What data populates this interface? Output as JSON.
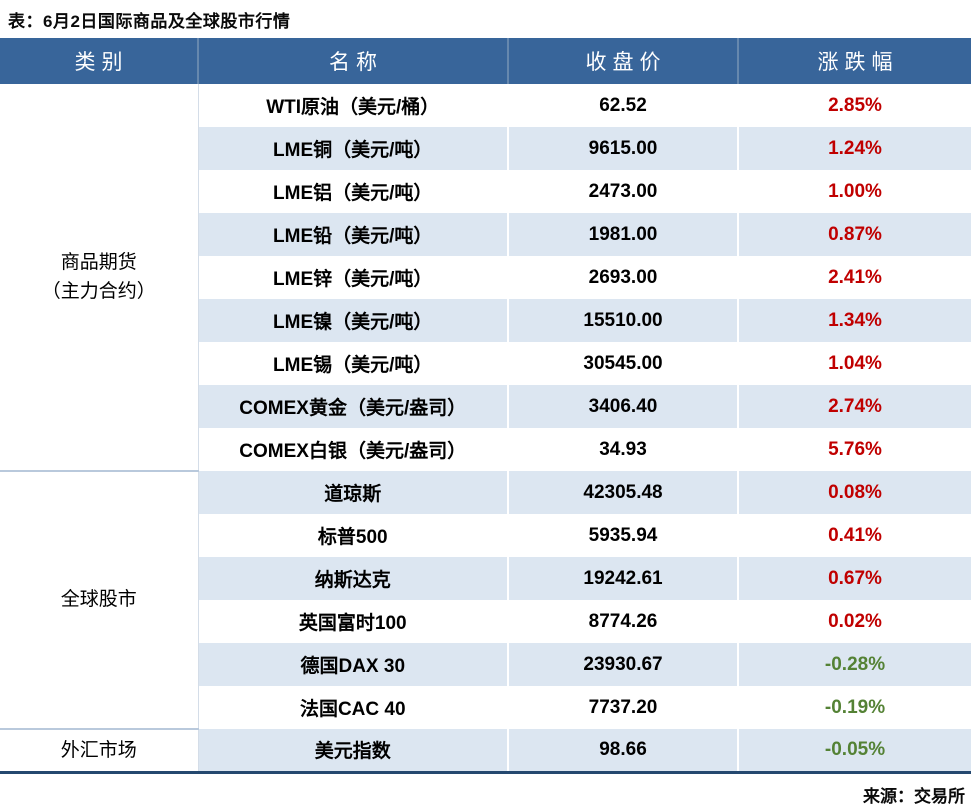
{
  "title": "表：6月2日国际商品及全球股市行情",
  "source": "来源：交易所",
  "colors": {
    "header_bg": "#38659A",
    "row_alt_bg": "#DCE6F1",
    "row_bg": "#FFFFFF",
    "up_text": "#C00000",
    "down_text": "#548235",
    "bottom_border": "#24486F"
  },
  "table": {
    "headers": [
      "类别",
      "名称",
      "收盘价",
      "涨跌幅"
    ],
    "groups": [
      {
        "category_lines": [
          "商品期货",
          "（主力合约）"
        ],
        "rows": [
          {
            "name": "WTI原油（美元/桶）",
            "close": "62.52",
            "change": "2.85%",
            "direction": "up"
          },
          {
            "name": "LME铜（美元/吨）",
            "close": "9615.00",
            "change": "1.24%",
            "direction": "up"
          },
          {
            "name": "LME铝（美元/吨）",
            "close": "2473.00",
            "change": "1.00%",
            "direction": "up"
          },
          {
            "name": "LME铅（美元/吨）",
            "close": "1981.00",
            "change": "0.87%",
            "direction": "up"
          },
          {
            "name": "LME锌（美元/吨）",
            "close": "2693.00",
            "change": "2.41%",
            "direction": "up"
          },
          {
            "name": "LME镍（美元/吨）",
            "close": "15510.00",
            "change": "1.34%",
            "direction": "up"
          },
          {
            "name": "LME锡（美元/吨）",
            "close": "30545.00",
            "change": "1.04%",
            "direction": "up"
          },
          {
            "name": "COMEX黄金（美元/盎司）",
            "close": "3406.40",
            "change": "2.74%",
            "direction": "up"
          },
          {
            "name": "COMEX白银（美元/盎司）",
            "close": "34.93",
            "change": "5.76%",
            "direction": "up"
          }
        ]
      },
      {
        "category_lines": [
          "全球股市"
        ],
        "rows": [
          {
            "name": "道琼斯",
            "close": "42305.48",
            "change": "0.08%",
            "direction": "up"
          },
          {
            "name": "标普500",
            "close": "5935.94",
            "change": "0.41%",
            "direction": "up"
          },
          {
            "name": "纳斯达克",
            "close": "19242.61",
            "change": "0.67%",
            "direction": "up"
          },
          {
            "name": "英国富时100",
            "close": "8774.26",
            "change": "0.02%",
            "direction": "up"
          },
          {
            "name": "德国DAX 30",
            "close": "23930.67",
            "change": "-0.28%",
            "direction": "down"
          },
          {
            "name": "法国CAC 40",
            "close": "7737.20",
            "change": "-0.19%",
            "direction": "down"
          }
        ]
      },
      {
        "category_lines": [
          "外汇市场"
        ],
        "rows": [
          {
            "name": "美元指数",
            "close": "98.66",
            "change": "-0.05%",
            "direction": "down"
          }
        ]
      }
    ]
  },
  "chart_data": {
    "type": "table",
    "title": "表：6月2日国际商品及全球股市行情",
    "columns": [
      "类别",
      "名称",
      "收盘价",
      "涨跌幅"
    ],
    "rows": [
      [
        "商品期货（主力合约）",
        "WTI原油（美元/桶）",
        62.52,
        "2.85%"
      ],
      [
        "商品期货（主力合约）",
        "LME铜（美元/吨）",
        9615.0,
        "1.24%"
      ],
      [
        "商品期货（主力合约）",
        "LME铝（美元/吨）",
        2473.0,
        "1.00%"
      ],
      [
        "商品期货（主力合约）",
        "LME铅（美元/吨）",
        1981.0,
        "0.87%"
      ],
      [
        "商品期货（主力合约）",
        "LME锌（美元/吨）",
        2693.0,
        "2.41%"
      ],
      [
        "商品期货（主力合约）",
        "LME镍（美元/吨）",
        15510.0,
        "1.34%"
      ],
      [
        "商品期货（主力合约）",
        "LME锡（美元/吨）",
        30545.0,
        "1.04%"
      ],
      [
        "商品期货（主力合约）",
        "COMEX黄金（美元/盎司）",
        3406.4,
        "2.74%"
      ],
      [
        "商品期货（主力合约）",
        "COMEX白银（美元/盎司）",
        34.93,
        "5.76%"
      ],
      [
        "全球股市",
        "道琼斯",
        42305.48,
        "0.08%"
      ],
      [
        "全球股市",
        "标普500",
        5935.94,
        "0.41%"
      ],
      [
        "全球股市",
        "纳斯达克",
        19242.61,
        "0.67%"
      ],
      [
        "全球股市",
        "英国富时100",
        8774.26,
        "0.02%"
      ],
      [
        "全球股市",
        "德国DAX 30",
        23930.67,
        "-0.28%"
      ],
      [
        "全球股市",
        "法国CAC 40",
        7737.2,
        "-0.19%"
      ],
      [
        "外汇市场",
        "美元指数",
        98.66,
        "-0.05%"
      ]
    ],
    "notes": "positive changes shown in red, negative in green; source: 来源：交易所"
  }
}
